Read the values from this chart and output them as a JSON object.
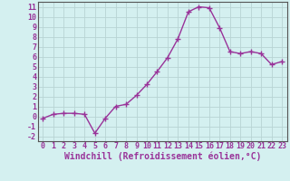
{
  "x": [
    0,
    1,
    2,
    3,
    4,
    5,
    6,
    7,
    8,
    9,
    10,
    11,
    12,
    13,
    14,
    15,
    16,
    17,
    18,
    19,
    20,
    21,
    22,
    23
  ],
  "y": [
    -0.2,
    0.2,
    0.3,
    0.3,
    0.2,
    -1.7,
    -0.2,
    1.0,
    1.2,
    2.1,
    3.2,
    4.5,
    5.9,
    7.8,
    10.5,
    11.0,
    10.9,
    8.9,
    6.5,
    6.3,
    6.5,
    6.3,
    5.2,
    5.5
  ],
  "line_color": "#993399",
  "marker": "+",
  "marker_size": 4,
  "bg_color": "#d4f0f0",
  "grid_color": "#b8d4d4",
  "xlabel": "Windchill (Refroidissement éolien,°C)",
  "xlim": [
    -0.5,
    23.5
  ],
  "ylim": [
    -2.5,
    11.5
  ],
  "yticks": [
    -2,
    -1,
    0,
    1,
    2,
    3,
    4,
    5,
    6,
    7,
    8,
    9,
    10,
    11
  ],
  "xticks": [
    0,
    1,
    2,
    3,
    4,
    5,
    6,
    7,
    8,
    9,
    10,
    11,
    12,
    13,
    14,
    15,
    16,
    17,
    18,
    19,
    20,
    21,
    22,
    23
  ],
  "tick_fontsize": 6,
  "xlabel_fontsize": 7,
  "label_color": "#993399",
  "line_width": 1.0
}
